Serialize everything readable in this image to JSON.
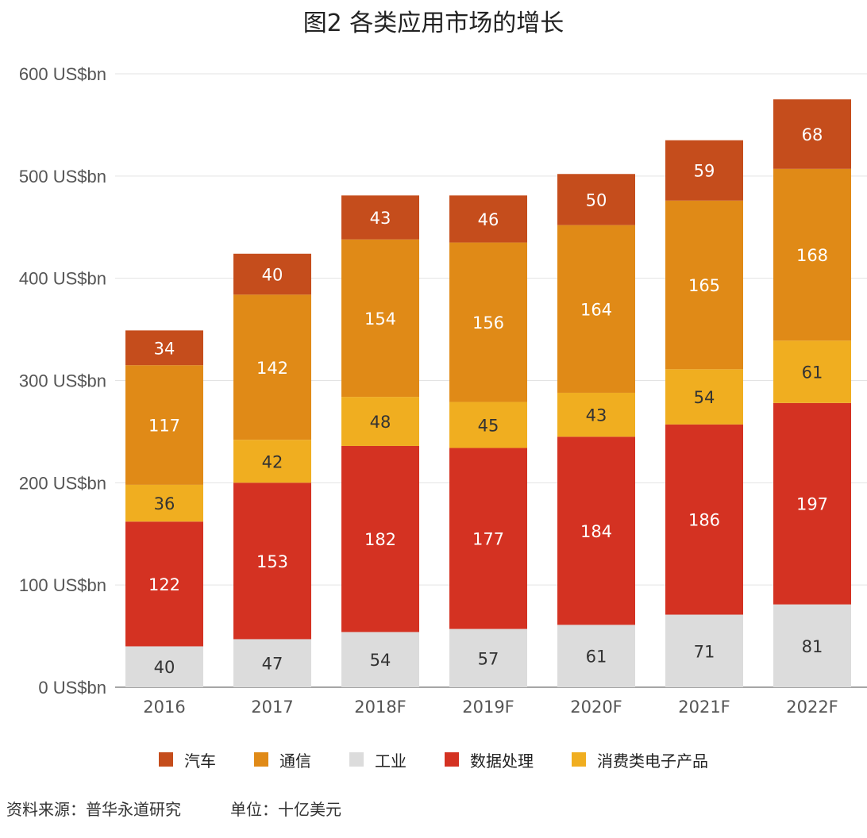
{
  "chart_data": {
    "type": "bar",
    "stacked": true,
    "title": "图2 各类应用市场的增长",
    "categories": [
      "2016",
      "2017",
      "2018F",
      "2019F",
      "2020F",
      "2021F",
      "2022F"
    ],
    "series": [
      {
        "name": "工业",
        "color": "#dcdcdc",
        "label_color": "#333333",
        "values": [
          40,
          47,
          54,
          57,
          61,
          71,
          81
        ]
      },
      {
        "name": "数据处理",
        "color": "#d43222",
        "label_color": "#ffffff",
        "values": [
          122,
          153,
          182,
          177,
          184,
          186,
          197
        ]
      },
      {
        "name": "消费类电子产品",
        "color": "#f0ae20",
        "label_color": "#333333",
        "values": [
          36,
          42,
          48,
          45,
          43,
          54,
          61
        ]
      },
      {
        "name": "通信",
        "color": "#e08a17",
        "label_color": "#ffffff",
        "values": [
          117,
          142,
          154,
          156,
          164,
          165,
          168
        ]
      },
      {
        "name": "汽车",
        "color": "#c54d1c",
        "label_color": "#ffffff",
        "values": [
          34,
          40,
          43,
          46,
          50,
          59,
          68
        ]
      }
    ],
    "ylim": [
      0,
      600
    ],
    "yticks": [
      "0 US$bn",
      "100 US$bn",
      "200 US$bn",
      "300 US$bn",
      "400 US$bn",
      "500 US$bn",
      "600 US$bn"
    ],
    "ytick_values": [
      0,
      100,
      200,
      300,
      400,
      500,
      600
    ],
    "grid": true,
    "legend_position": "bottom",
    "legend_order": [
      "汽车",
      "通信",
      "工业",
      "数据处理",
      "消费类电子产品"
    ]
  },
  "footer": {
    "source": "资料来源：普华永道研究",
    "unit": "单位：十亿美元"
  }
}
